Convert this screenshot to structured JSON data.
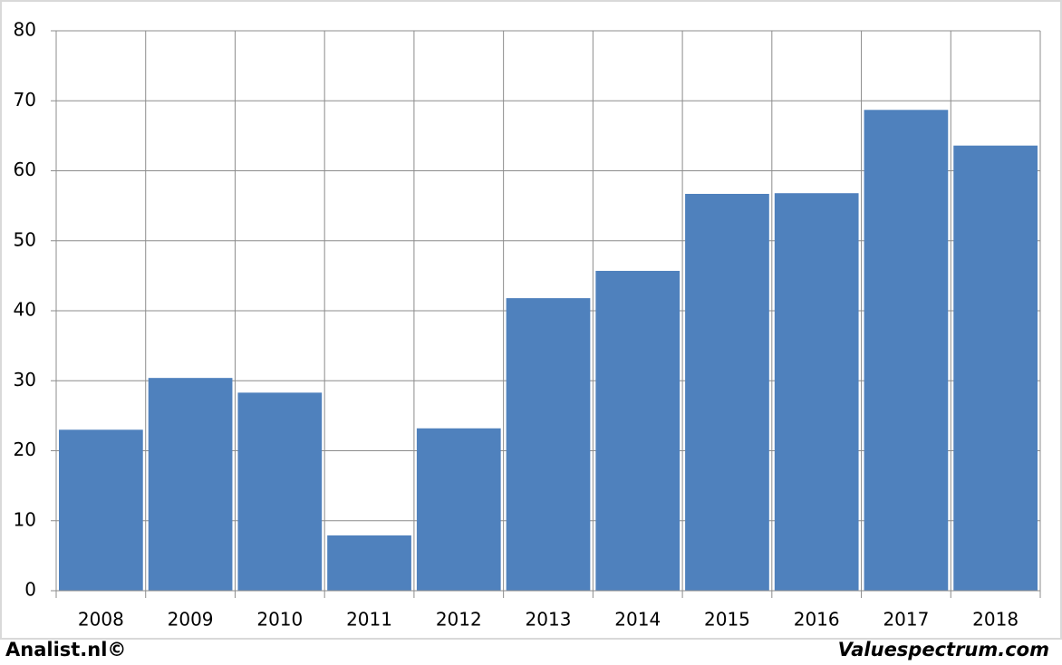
{
  "chart_data": {
    "type": "bar",
    "categories": [
      "2008",
      "2009",
      "2010",
      "2011",
      "2012",
      "2013",
      "2014",
      "2015",
      "2016",
      "2017",
      "2018"
    ],
    "values": [
      23.0,
      30.4,
      28.3,
      7.9,
      23.2,
      41.8,
      45.7,
      56.7,
      56.8,
      68.7,
      63.6
    ],
    "color": "#4f81bd",
    "ylim": [
      0,
      80
    ],
    "yticks": [
      0,
      10,
      20,
      30,
      40,
      50,
      60,
      70,
      80
    ],
    "grid": true
  },
  "footer": {
    "left": "Analist.nl©",
    "right": "Valuespectrum.com"
  }
}
